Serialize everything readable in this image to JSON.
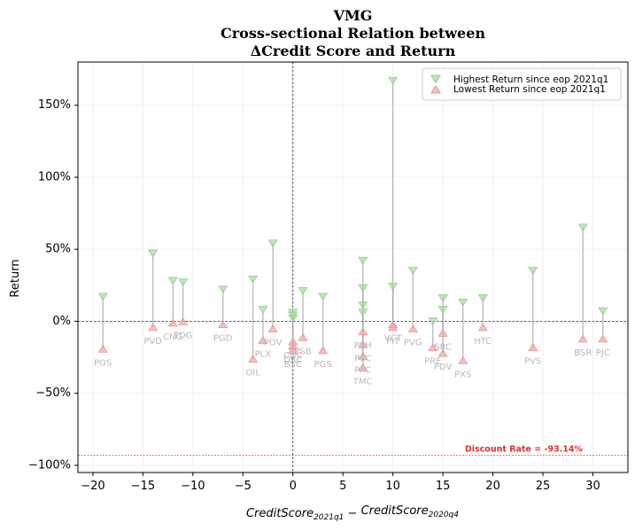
{
  "chart_data": {
    "type": "scatter",
    "title_lines": [
      "VMG",
      "Cross-sectional Relation between",
      "ΔCredit Score and Return"
    ],
    "xlabel": "CreditScore_2021q1 − CreditScore_2020q4",
    "ylabel": "Return",
    "xlim": [
      -21.5,
      33.5
    ],
    "ylim": [
      -1.05,
      1.8
    ],
    "xticks": [
      -20,
      -15,
      -10,
      -5,
      0,
      5,
      10,
      15,
      20,
      25,
      30
    ],
    "xtick_labels": [
      "−20",
      "−15",
      "−10",
      "−5",
      "0",
      "5",
      "10",
      "15",
      "20",
      "25",
      "30"
    ],
    "yticks": [
      -1.0,
      -0.5,
      0.0,
      0.5,
      1.0,
      1.5
    ],
    "ytick_labels": [
      "−100%",
      "−50%",
      "0%",
      "50%",
      "100%",
      "150%"
    ],
    "legend": {
      "position": "top-right",
      "entries": [
        {
          "label": "Highest Return since eop 2021q1",
          "marker": "triangle-down",
          "color": "#a8dca0"
        },
        {
          "label": "Lowest Return since eop 2021q1",
          "marker": "triangle-up",
          "color": "#f0a8a8"
        }
      ]
    },
    "discount_rate": {
      "value": -0.9314,
      "label": "Discount Rate = -93.14%",
      "color": "#e03030"
    },
    "grid": true,
    "colors": {
      "high": "#a8dca0",
      "low": "#f0a8a8",
      "stem": "#a0a0a0",
      "label": "#b8b8b8"
    },
    "points": [
      {
        "ticker": "POS",
        "x": -19,
        "high": 0.17,
        "low": -0.19
      },
      {
        "ticker": "PVD",
        "x": -14,
        "high": 0.47,
        "low": -0.04
      },
      {
        "ticker": "CNG",
        "x": -12,
        "high": 0.28,
        "low": -0.01
      },
      {
        "ticker": "TDG",
        "x": -11,
        "high": 0.27,
        "low": 0.0
      },
      {
        "ticker": "PGD",
        "x": -7,
        "high": 0.22,
        "low": -0.02
      },
      {
        "ticker": "OIL",
        "x": -4,
        "high": 0.29,
        "low": -0.26
      },
      {
        "ticker": "PLX",
        "x": -3,
        "high": 0.08,
        "low": -0.13
      },
      {
        "ticker": "POV",
        "x": -2,
        "high": 0.54,
        "low": -0.05
      },
      {
        "ticker": "CNC",
        "x": 0,
        "high": 0.06,
        "low": -0.14
      },
      {
        "ticker": "PSB",
        "x": 1,
        "high": 0.21,
        "low": -0.11
      },
      {
        "ticker": "DRC",
        "x": 0,
        "high": 0.02,
        "low": -0.17
      },
      {
        "ticker": "BSC",
        "x": 0,
        "high": 0.04,
        "low": -0.2
      },
      {
        "ticker": "PGS",
        "x": 3,
        "high": 0.17,
        "low": -0.2
      },
      {
        "ticker": "PSH",
        "x": 7,
        "high": 0.42,
        "low": -0.07
      },
      {
        "ticker": "PSC",
        "x": 7,
        "high": 0.23,
        "low": -0.16
      },
      {
        "ticker": "PXC",
        "x": 7,
        "high": 0.11,
        "low": -0.24
      },
      {
        "ticker": "TMC",
        "x": 7,
        "high": 0.06,
        "low": -0.32
      },
      {
        "ticker": "VCT",
        "x": 10,
        "high": 1.67,
        "low": -0.02
      },
      {
        "ticker": "PIT",
        "x": 10,
        "high": 0.24,
        "low": -0.04
      },
      {
        "ticker": "PVG",
        "x": 12,
        "high": 0.35,
        "low": -0.05
      },
      {
        "ticker": "PRE",
        "x": 14,
        "high": 0.0,
        "low": -0.18
      },
      {
        "ticker": "SRC",
        "x": 15,
        "high": 0.08,
        "low": -0.08
      },
      {
        "ticker": "PDV",
        "x": 15,
        "high": 0.16,
        "low": -0.22
      },
      {
        "ticker": "PXS",
        "x": 17,
        "high": 0.13,
        "low": -0.27
      },
      {
        "ticker": "HTC",
        "x": 19,
        "high": 0.16,
        "low": -0.04
      },
      {
        "ticker": "PVS",
        "x": 24,
        "high": 0.35,
        "low": -0.18
      },
      {
        "ticker": "BSR",
        "x": 29,
        "high": 0.65,
        "low": -0.12
      },
      {
        "ticker": "PJC",
        "x": 31,
        "high": 0.07,
        "low": -0.12
      }
    ]
  }
}
